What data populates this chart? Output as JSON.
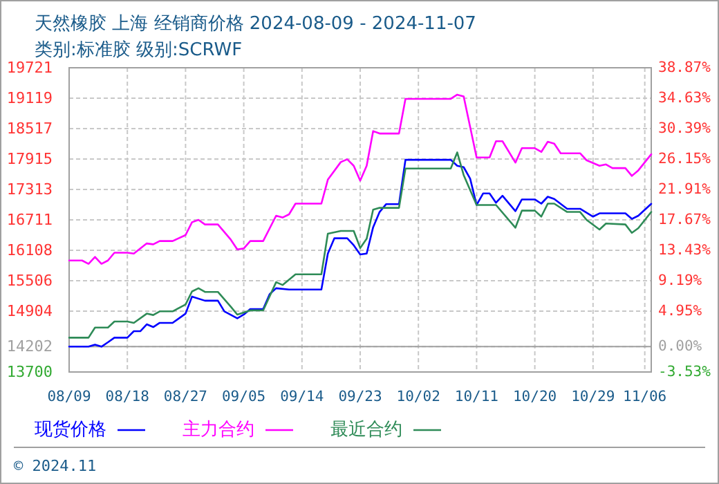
{
  "chart_data": {
    "type": "line",
    "title": "天然橡胶 上海 经销商价格 2024-08-09 - 2024-11-07",
    "subtitle": "类别:标准胶 级别:SCRWF",
    "xlim": [
      "2024-08-09",
      "2024-11-07"
    ],
    "xticks": [
      {
        "value": "2024-08-09",
        "label": "08/09"
      },
      {
        "value": "2024-08-18",
        "label": "08/18"
      },
      {
        "value": "2024-08-27",
        "label": "08/27"
      },
      {
        "value": "2024-09-05",
        "label": "09/05"
      },
      {
        "value": "2024-09-14",
        "label": "09/14"
      },
      {
        "value": "2024-09-23",
        "label": "09/23"
      },
      {
        "value": "2024-10-02",
        "label": "10/02"
      },
      {
        "value": "2024-10-11",
        "label": "10/11"
      },
      {
        "value": "2024-10-20",
        "label": "10/20"
      },
      {
        "value": "2024-10-29",
        "label": "10/29"
      },
      {
        "value": "2024-11-06",
        "label": "11/06"
      }
    ],
    "ylim": [
      13700,
      19721
    ],
    "yticks": [
      13700,
      14202,
      14904,
      15506,
      16108,
      16711,
      17313,
      17915,
      18517,
      19119,
      19721
    ],
    "y2lim": [
      -3.53,
      38.87
    ],
    "y2ticks": [
      {
        "value": -3.53,
        "label": "-3.53%"
      },
      {
        "value": 0,
        "label": "0.00%"
      },
      {
        "value": 4.95,
        "label": "4.95%"
      },
      {
        "value": 9.19,
        "label": "9.19%"
      },
      {
        "value": 13.43,
        "label": "13.43%"
      },
      {
        "value": 17.67,
        "label": "17.67%"
      },
      {
        "value": 21.91,
        "label": "21.91%"
      },
      {
        "value": 26.15,
        "label": "26.15%"
      },
      {
        "value": 30.39,
        "label": "30.39%"
      },
      {
        "value": 34.63,
        "label": "34.63%"
      },
      {
        "value": 38.87,
        "label": "38.87%"
      }
    ],
    "ref_lines": [
      {
        "axis": "y",
        "value": 14202,
        "color": "#a0a0a0"
      }
    ],
    "grid": true,
    "legend": "bottom",
    "line_style": "solid",
    "annotations": [
      "© 2024.11"
    ],
    "series": [
      {
        "name": "现货价格",
        "color": "#0000ff",
        "x": [
          "2024-08-09",
          "2024-08-12",
          "2024-08-13",
          "2024-08-14",
          "2024-08-15",
          "2024-08-16",
          "2024-08-18",
          "2024-08-19",
          "2024-08-20",
          "2024-08-21",
          "2024-08-22",
          "2024-08-23",
          "2024-08-25",
          "2024-08-27",
          "2024-08-28",
          "2024-08-30",
          "2024-09-01",
          "2024-09-02",
          "2024-09-04",
          "2024-09-05",
          "2024-09-06",
          "2024-09-08",
          "2024-09-09",
          "2024-09-10",
          "2024-09-12",
          "2024-09-17",
          "2024-09-18",
          "2024-09-19",
          "2024-09-21",
          "2024-09-22",
          "2024-09-23",
          "2024-09-24",
          "2024-09-25",
          "2024-09-26",
          "2024-09-27",
          "2024-09-29",
          "2024-09-30",
          "2024-10-07",
          "2024-10-08",
          "2024-10-09",
          "2024-10-10",
          "2024-10-11",
          "2024-10-12",
          "2024-10-13",
          "2024-10-14",
          "2024-10-15",
          "2024-10-17",
          "2024-10-18",
          "2024-10-20",
          "2024-10-21",
          "2024-10-22",
          "2024-10-23",
          "2024-10-25",
          "2024-10-27",
          "2024-10-29",
          "2024-10-30",
          "2024-11-03",
          "2024-11-04",
          "2024-11-05",
          "2024-11-07"
        ],
        "values": [
          14202,
          14202,
          14241,
          14202,
          14288,
          14379,
          14379,
          14507,
          14507,
          14644,
          14589,
          14672,
          14672,
          14855,
          15193,
          15111,
          15111,
          14900,
          14763,
          14836,
          14946,
          14946,
          15239,
          15358,
          15331,
          15331,
          16044,
          16346,
          16346,
          16209,
          16026,
          16044,
          16565,
          16867,
          17021,
          17021,
          17900,
          17900,
          17781,
          17754,
          17526,
          17005,
          17233,
          17233,
          17050,
          17188,
          16884,
          17115,
          17115,
          17032,
          17169,
          17124,
          16930,
          16930,
          16775,
          16840,
          16840,
          16730,
          16793,
          17028
        ]
      },
      {
        "name": "主力合约",
        "color": "#ff00ff",
        "x": [
          "2024-08-09",
          "2024-08-11",
          "2024-08-12",
          "2024-08-13",
          "2024-08-14",
          "2024-08-15",
          "2024-08-16",
          "2024-08-18",
          "2024-08-19",
          "2024-08-21",
          "2024-08-22",
          "2024-08-23",
          "2024-08-25",
          "2024-08-27",
          "2024-08-28",
          "2024-08-29",
          "2024-08-30",
          "2024-09-01",
          "2024-09-03",
          "2024-09-04",
          "2024-09-05",
          "2024-09-06",
          "2024-09-08",
          "2024-09-10",
          "2024-09-11",
          "2024-09-12",
          "2024-09-13",
          "2024-09-17",
          "2024-09-18",
          "2024-09-20",
          "2024-09-21",
          "2024-09-22",
          "2024-09-23",
          "2024-09-24",
          "2024-09-25",
          "2024-09-26",
          "2024-09-29",
          "2024-09-30",
          "2024-10-07",
          "2024-10-08",
          "2024-10-09",
          "2024-10-11",
          "2024-10-13",
          "2024-10-14",
          "2024-10-15",
          "2024-10-17",
          "2024-10-18",
          "2024-10-20",
          "2024-10-21",
          "2024-10-22",
          "2024-10-23",
          "2024-10-24",
          "2024-10-27",
          "2024-10-28",
          "2024-10-30",
          "2024-10-31",
          "2024-11-01",
          "2024-11-03",
          "2024-11-04",
          "2024-11-05",
          "2024-11-07"
        ],
        "values": [
          15907,
          15907,
          15841,
          15978,
          15841,
          15907,
          16061,
          16061,
          16044,
          16244,
          16226,
          16291,
          16291,
          16409,
          16664,
          16711,
          16620,
          16620,
          16318,
          16126,
          16144,
          16291,
          16291,
          16793,
          16757,
          16820,
          17032,
          17032,
          17507,
          17855,
          17910,
          17781,
          17487,
          17781,
          18467,
          18420,
          18420,
          19106,
          19106,
          19189,
          19153,
          17945,
          17945,
          18267,
          18267,
          17844,
          18130,
          18130,
          18055,
          18256,
          18220,
          18028,
          18028,
          17891,
          17781,
          17808,
          17735,
          17735,
          17581,
          17690,
          18009
        ]
      },
      {
        "name": "最近合约",
        "color": "#2e8b57",
        "x": [
          "2024-08-09",
          "2024-08-12",
          "2024-08-13",
          "2024-08-15",
          "2024-08-16",
          "2024-08-18",
          "2024-08-19",
          "2024-08-21",
          "2024-08-22",
          "2024-08-23",
          "2024-08-25",
          "2024-08-27",
          "2024-08-28",
          "2024-08-29",
          "2024-08-30",
          "2024-09-01",
          "2024-09-03",
          "2024-09-04",
          "2024-09-06",
          "2024-09-08",
          "2024-09-10",
          "2024-09-11",
          "2024-09-13",
          "2024-09-17",
          "2024-09-18",
          "2024-09-20",
          "2024-09-22",
          "2024-09-23",
          "2024-09-24",
          "2024-09-25",
          "2024-09-26",
          "2024-09-29",
          "2024-09-30",
          "2024-10-07",
          "2024-10-08",
          "2024-10-09",
          "2024-10-11",
          "2024-10-14",
          "2024-10-17",
          "2024-10-18",
          "2024-10-20",
          "2024-10-21",
          "2024-10-22",
          "2024-10-23",
          "2024-10-25",
          "2024-10-27",
          "2024-10-28",
          "2024-10-30",
          "2024-10-31",
          "2024-11-03",
          "2024-11-04",
          "2024-11-05",
          "2024-11-07"
        ],
        "values": [
          14379,
          14379,
          14580,
          14580,
          14699,
          14699,
          14672,
          14855,
          14827,
          14900,
          14900,
          15037,
          15294,
          15358,
          15285,
          15285,
          14992,
          14836,
          14919,
          14919,
          15477,
          15422,
          15633,
          15633,
          16437,
          16492,
          16492,
          16154,
          16337,
          16912,
          16949,
          16949,
          17727,
          17727,
          18046,
          17597,
          17005,
          17005,
          16556,
          16894,
          16894,
          16775,
          17032,
          17032,
          16867,
          16867,
          16711,
          16519,
          16638,
          16620,
          16455,
          16547,
          16867
        ]
      }
    ]
  }
}
